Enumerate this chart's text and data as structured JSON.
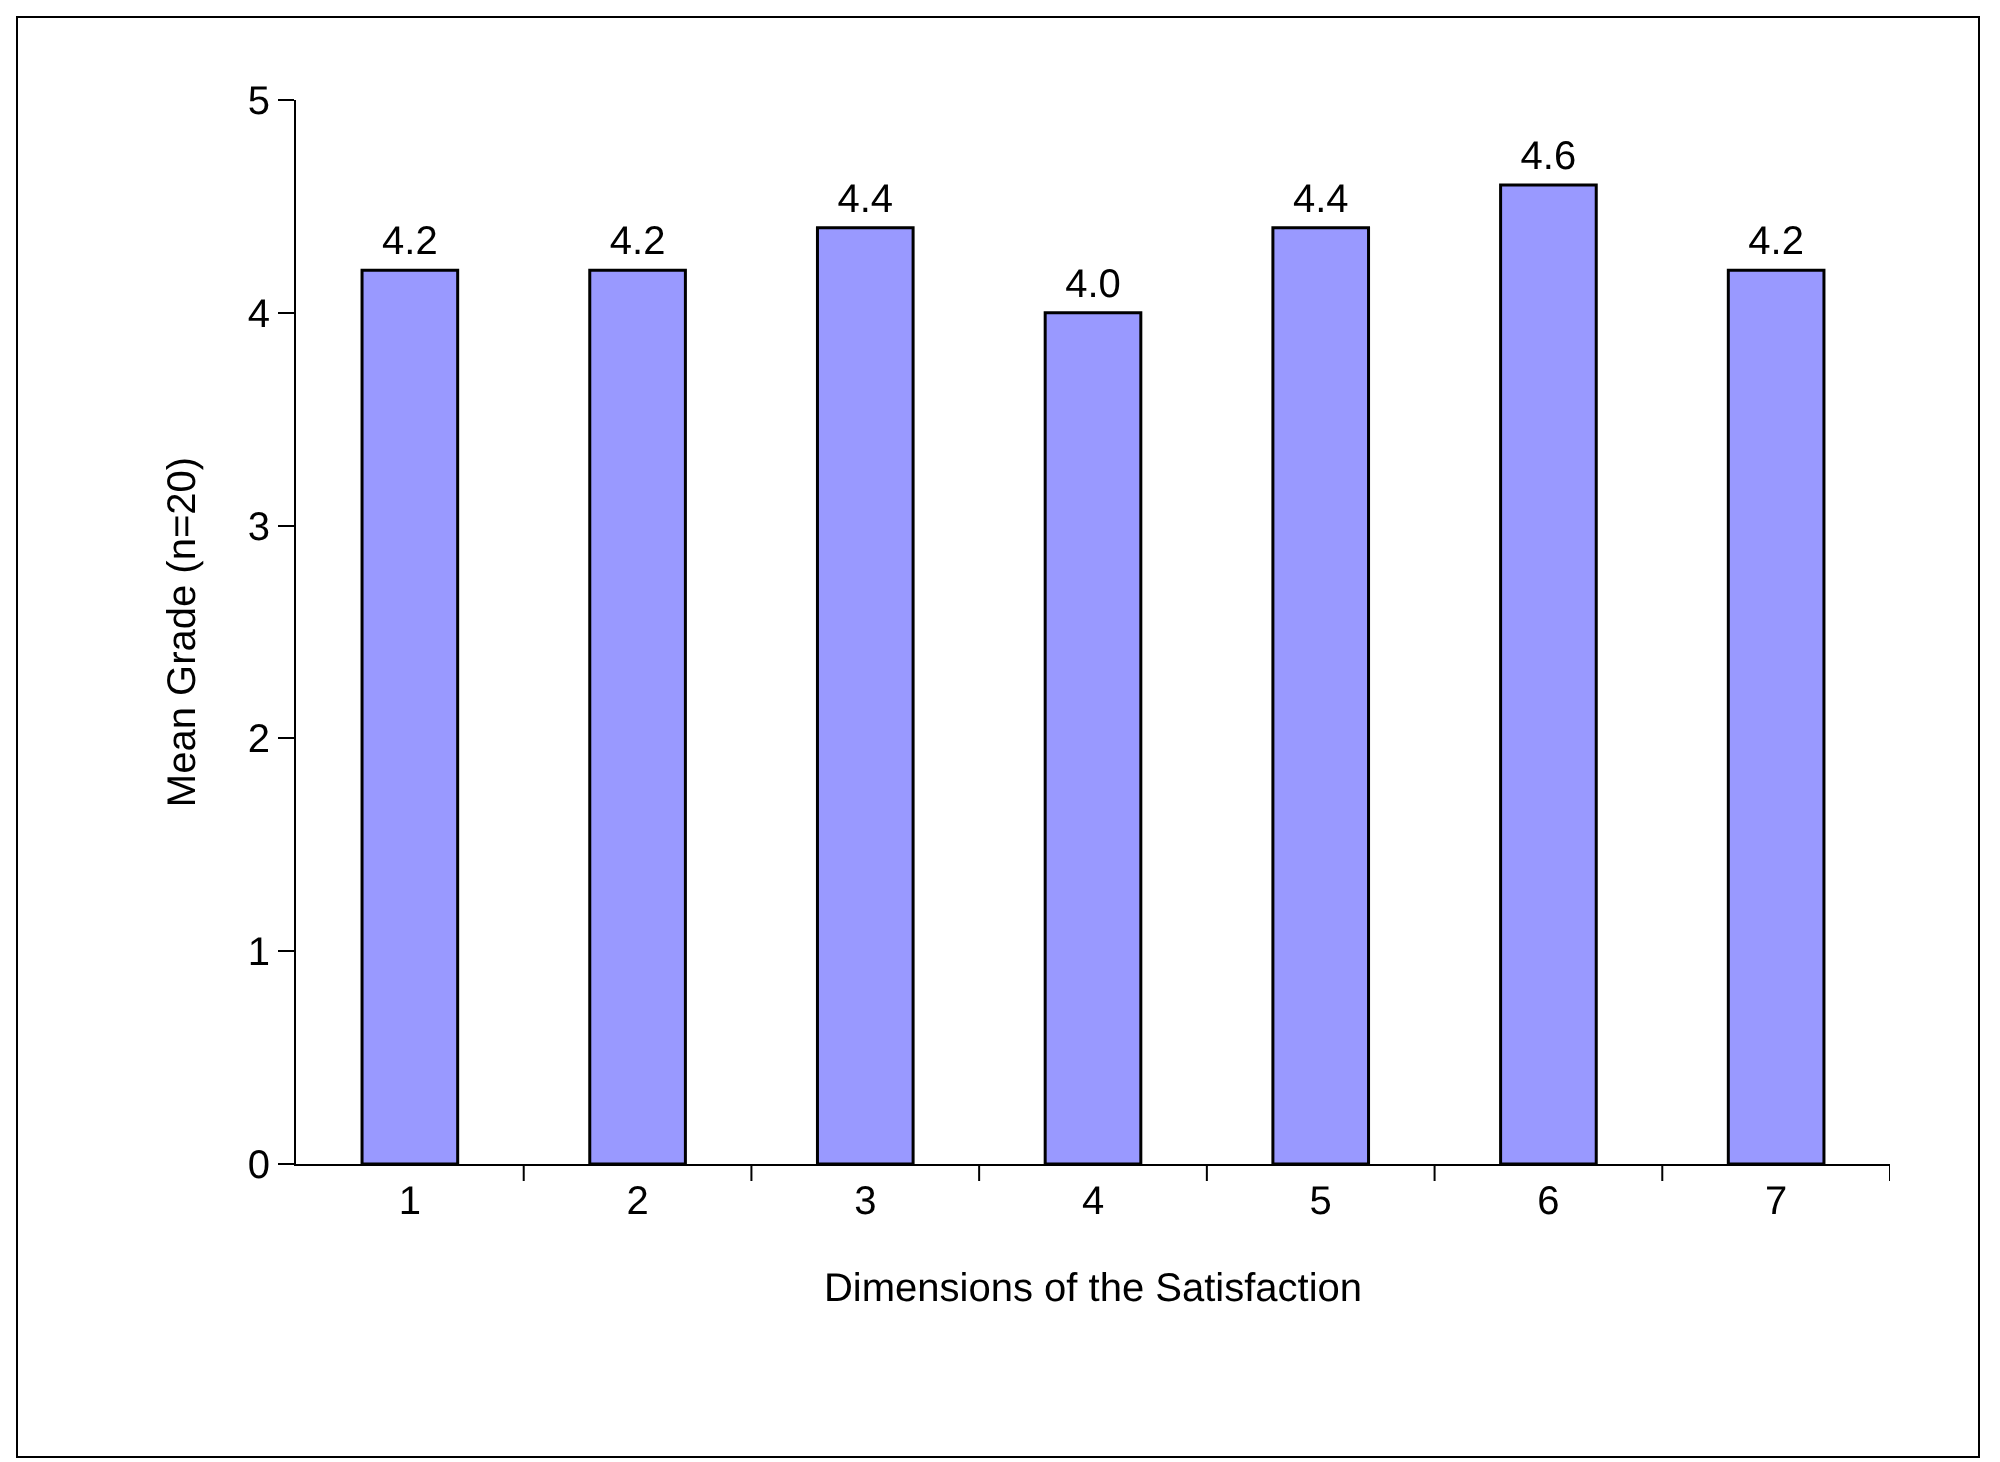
{
  "chart_data": {
    "type": "bar",
    "xlabel": "Dimensions of the Satisfaction",
    "ylabel": "Mean Grade (n=20)",
    "categories": [
      "1",
      "2",
      "3",
      "4",
      "5",
      "6",
      "7"
    ],
    "values": [
      4.2,
      4.2,
      4.4,
      4.0,
      4.4,
      4.6,
      4.2
    ],
    "value_labels": [
      "4.2",
      "4.2",
      "4.4",
      "4.0",
      "4.4",
      "4.6",
      "4.2"
    ],
    "color": "#9999ff",
    "ylim": [
      0,
      5
    ],
    "yticks": [
      0,
      1,
      2,
      3,
      4,
      5
    ],
    "grid": false,
    "legend": false
  }
}
